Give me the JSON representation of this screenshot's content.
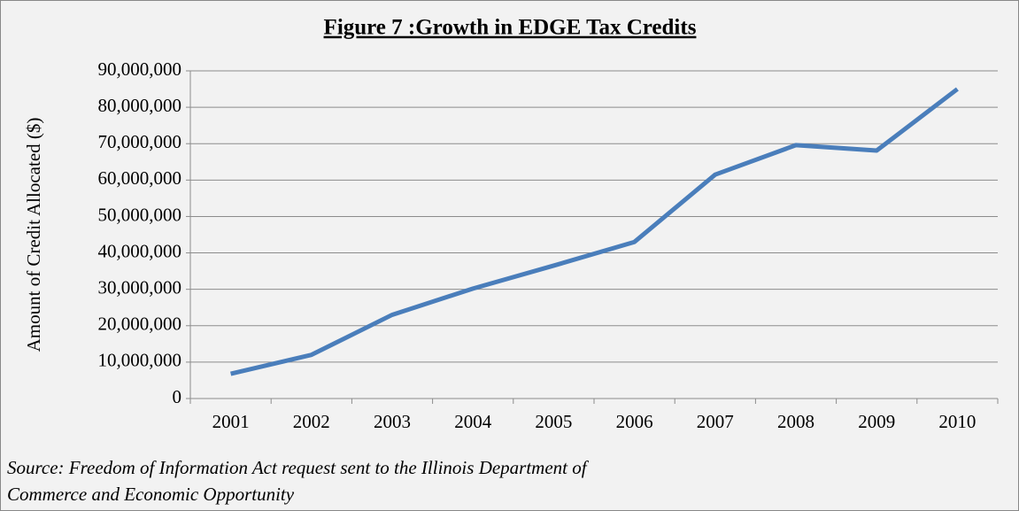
{
  "chart_data": {
    "type": "line",
    "title": "Figure 7 :Growth in EDGE Tax Credits",
    "y_label": "Amount of Credit Allocated ($)",
    "source": [
      "Source: Freedom of Information Act request sent to the Illinois Department of",
      "Commerce and Economic Opportunity"
    ],
    "categories": [
      "2001",
      "2002",
      "2003",
      "2004",
      "2005",
      "2006",
      "2007",
      "2008",
      "2009",
      "2010"
    ],
    "series": [
      {
        "name": "EDGE Tax Credits",
        "color": "#4a7ebb",
        "values": [
          6800000,
          12000000,
          23000000,
          30200000,
          36500000,
          43000000,
          61500000,
          69600000,
          68100000,
          85000000
        ]
      }
    ],
    "ylim": [
      0,
      90000000
    ],
    "yticks": [
      0,
      {
        "value": 10000000,
        "label": "10,000,000"
      },
      {
        "value": 20000000,
        "label": "20,000,000"
      },
      {
        "value": 30000000,
        "label": "30,000,000"
      },
      {
        "value": 40000000,
        "label": "40,000,000"
      },
      {
        "value": 50000000,
        "label": "50,000,000"
      },
      {
        "value": 60000000,
        "label": "60,000,000"
      },
      {
        "value": 70000000,
        "label": "70,000,000"
      },
      {
        "value": 80000000,
        "label": "80,000,000"
      },
      {
        "value": 90000000,
        "label": "90,000,000"
      }
    ],
    "grid": true,
    "legend": false
  }
}
